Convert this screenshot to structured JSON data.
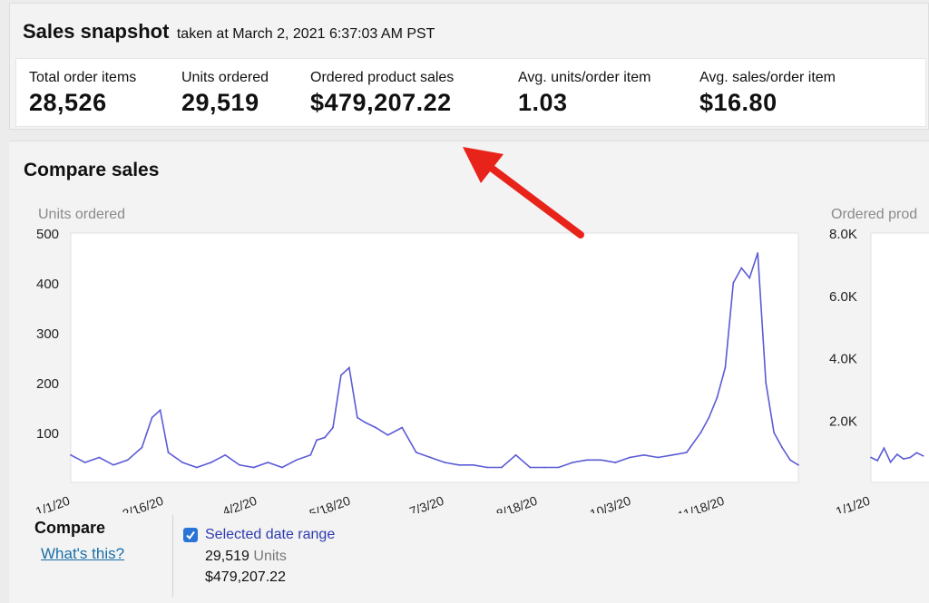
{
  "snapshot": {
    "title": "Sales snapshot",
    "subtitle": "taken at March 2, 2021 6:37:03 AM PST",
    "metrics": [
      {
        "label": "Total order items",
        "value": "28,526"
      },
      {
        "label": "Units ordered",
        "value": "29,519"
      },
      {
        "label": "Ordered product sales",
        "value": "$479,207.22"
      },
      {
        "label": "Avg. units/order item",
        "value": "1.03"
      },
      {
        "label": "Avg. sales/order item",
        "value": "$16.80"
      }
    ]
  },
  "compare": {
    "title": "Compare sales",
    "label": "Compare",
    "link": "What's this?",
    "range_label": "Selected date range",
    "units_value": "29,519",
    "units_label": "Units",
    "sales_value": "$479,207.22"
  },
  "annotation": {
    "arrow_color": "#e8231a"
  },
  "chart_data": [
    {
      "type": "line",
      "ylabel": "Units ordered",
      "ylim": [
        0,
        500
      ],
      "yticks": [
        "500",
        "400",
        "300",
        "200",
        "100"
      ],
      "xticks": [
        "1/1/20",
        "2/16/20",
        "4/2/20",
        "5/18/20",
        "7/3/20",
        "8/18/20",
        "10/3/20",
        "11/18/20"
      ],
      "color": "#5b5bd6",
      "series": [
        {
          "x": [
            "1/1/20",
            "1/8/20",
            "1/15/20",
            "1/22/20",
            "1/29/20",
            "2/5/20",
            "2/10/20",
            "2/14/20",
            "2/18/20",
            "2/25/20",
            "3/3/20",
            "3/10/20",
            "3/17/20",
            "3/24/20",
            "3/31/20",
            "4/7/20",
            "4/14/20",
            "4/21/20",
            "4/28/20",
            "5/1/20",
            "5/5/20",
            "5/9/20",
            "5/13/20",
            "5/17/20",
            "5/21/20",
            "5/25/20",
            "5/30/20",
            "6/5/20",
            "6/12/20",
            "6/19/20",
            "6/26/20",
            "7/3/20",
            "7/10/20",
            "7/17/20",
            "7/24/20",
            "7/31/20",
            "8/7/20",
            "8/14/20",
            "8/21/20",
            "8/28/20",
            "9/4/20",
            "9/11/20",
            "9/18/20",
            "9/25/20",
            "10/2/20",
            "10/9/20",
            "10/16/20",
            "10/23/20",
            "10/30/20",
            "11/6/20",
            "11/10/20",
            "11/14/20",
            "11/18/20",
            "11/22/20",
            "11/26/20",
            "11/30/20",
            "12/4/20",
            "12/8/20",
            "12/12/20",
            "12/16/20",
            "12/20/20",
            "12/24/20"
          ],
          "values": [
            55,
            40,
            50,
            35,
            45,
            70,
            130,
            145,
            60,
            40,
            30,
            40,
            55,
            35,
            30,
            40,
            30,
            45,
            55,
            85,
            90,
            110,
            215,
            230,
            130,
            120,
            110,
            95,
            110,
            60,
            50,
            40,
            35,
            35,
            30,
            30,
            55,
            30,
            30,
            30,
            40,
            45,
            45,
            40,
            50,
            55,
            50,
            55,
            60,
            100,
            130,
            170,
            230,
            400,
            430,
            410,
            460,
            200,
            100,
            70,
            45,
            35
          ]
        }
      ]
    },
    {
      "type": "line",
      "ylabel": "Ordered prod",
      "ylim": [
        0,
        8000
      ],
      "yticks": [
        "8.0K",
        "6.0K",
        "4.0K",
        "2.0K"
      ],
      "xticks": [
        "1/1/20"
      ],
      "color": "#5b5bd6",
      "series": [
        {
          "x": [
            "1/1/20",
            "1/4/20",
            "1/7/20",
            "1/10/20",
            "1/13/20",
            "1/16/20",
            "1/19/20",
            "1/22/20",
            "1/25/20"
          ],
          "values": [
            800,
            700,
            1100,
            650,
            900,
            750,
            800,
            950,
            850
          ]
        }
      ]
    }
  ]
}
